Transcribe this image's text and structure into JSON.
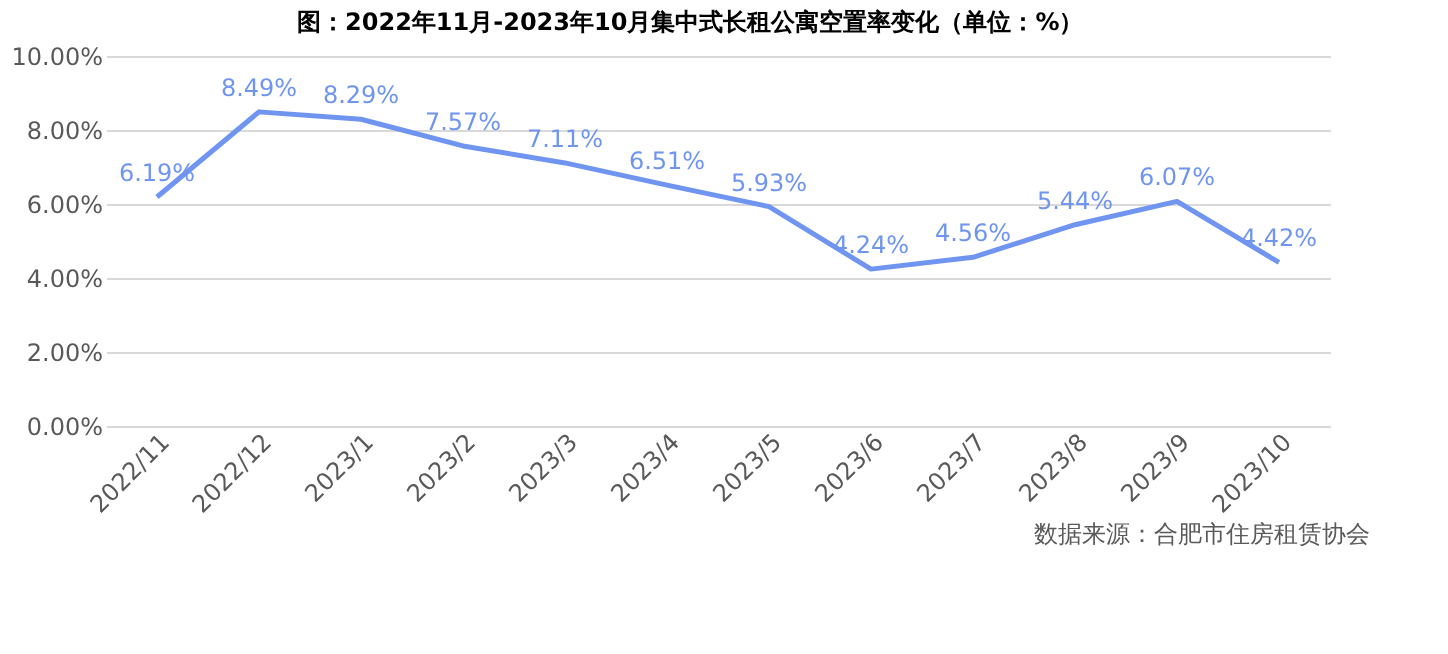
{
  "chart_data": {
    "type": "line",
    "title": "图：2022年11月-2023年10月集中式长租公寓空置率变化（单位：%）",
    "categories": [
      "2022/11",
      "2022/12",
      "2023/1",
      "2023/2",
      "2023/3",
      "2023/4",
      "2023/5",
      "2023/6",
      "2023/7",
      "2023/8",
      "2023/9",
      "2023/10"
    ],
    "series": [
      {
        "color": "#6f95f0",
        "values": [
          6.19,
          8.49,
          8.29,
          7.57,
          7.11,
          6.51,
          5.93,
          4.24,
          4.56,
          5.44,
          6.07,
          4.42
        ],
        "value_labels": [
          "6.19%",
          "8.49%",
          "8.29%",
          "7.57%",
          "7.11%",
          "6.51%",
          "5.93%",
          "4.24%",
          "4.56%",
          "5.44%",
          "6.07%",
          "4.42%"
        ]
      }
    ],
    "ylim": [
      0,
      10
    ],
    "yticks": [
      {
        "value": 0,
        "label": "0.00%"
      },
      {
        "value": 2,
        "label": "2.00%"
      },
      {
        "value": 4,
        "label": "4.00%"
      },
      {
        "value": 6,
        "label": "6.00%"
      },
      {
        "value": 8,
        "label": "8.00%"
      },
      {
        "value": 10,
        "label": "10.00%"
      }
    ],
    "grid": "y",
    "marker": "none",
    "line_style": "solid",
    "annotations": [
      "数据来源：合肥市住房租赁协会"
    ]
  }
}
